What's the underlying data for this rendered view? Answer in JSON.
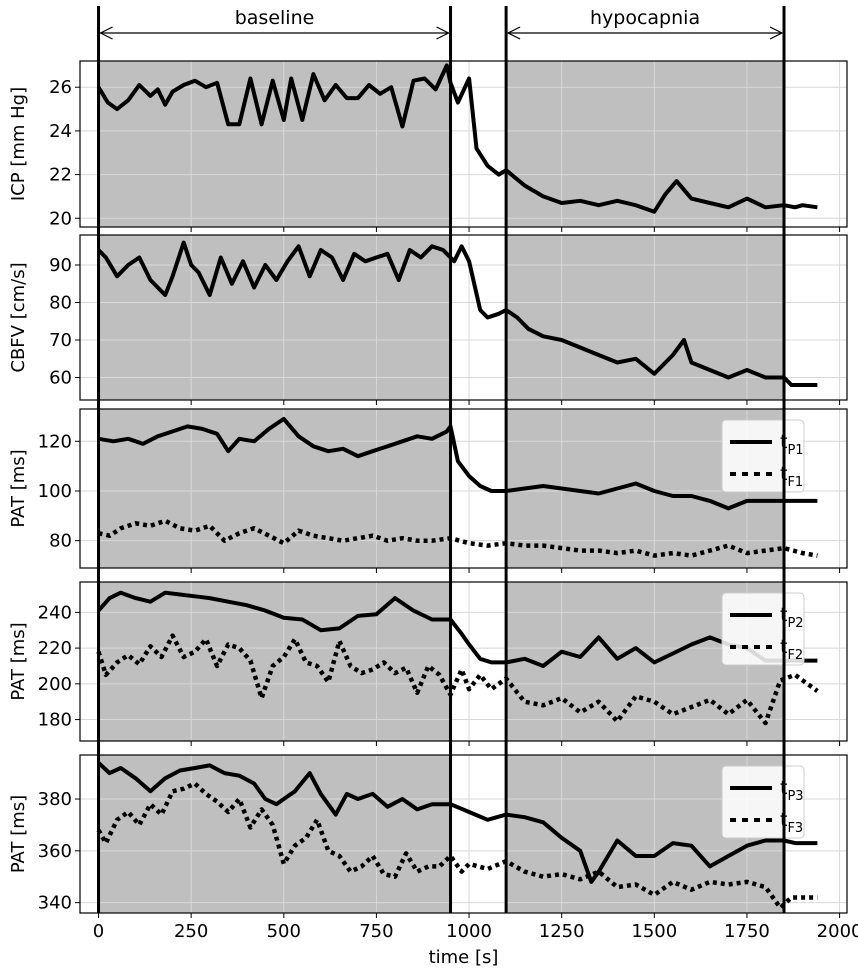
{
  "figure": {
    "phases": [
      {
        "label": "baseline",
        "start": 0,
        "end": 950
      },
      {
        "label": "hypocapnia",
        "start": 1100,
        "end": 1850
      }
    ]
  },
  "chart_data": [
    {
      "type": "line",
      "ylabel": "ICP [mm Hg]",
      "xlabel": "",
      "xlim": [
        -50,
        2020
      ],
      "ylim": [
        19.6,
        27.2
      ],
      "yticks": [
        20,
        22,
        24,
        26
      ],
      "xticks": [
        0,
        250,
        500,
        750,
        1000,
        1250,
        1500,
        1750,
        2000
      ],
      "grid": true,
      "series": [
        {
          "name": "",
          "style": "solid",
          "x": [
            0,
            25,
            50,
            80,
            110,
            140,
            160,
            180,
            200,
            230,
            260,
            290,
            320,
            350,
            380,
            410,
            440,
            470,
            500,
            520,
            550,
            580,
            610,
            640,
            670,
            700,
            730,
            760,
            790,
            820,
            850,
            880,
            910,
            940,
            950,
            970,
            1000,
            1020,
            1050,
            1080,
            1100,
            1150,
            1200,
            1250,
            1300,
            1350,
            1400,
            1450,
            1500,
            1530,
            1560,
            1600,
            1650,
            1700,
            1750,
            1800,
            1850,
            1880,
            1900,
            1940
          ],
          "y": [
            26,
            25.3,
            25.0,
            25.4,
            26.1,
            25.6,
            25.9,
            25.2,
            25.8,
            26.1,
            26.3,
            26.0,
            26.2,
            24.3,
            24.3,
            26.4,
            24.3,
            26.3,
            24.5,
            26.4,
            24.5,
            26.6,
            25.4,
            26.1,
            25.5,
            25.5,
            26.1,
            25.7,
            26.0,
            24.2,
            26.3,
            26.4,
            25.9,
            27.0,
            26.2,
            25.3,
            26.4,
            23.2,
            22.4,
            22.0,
            22.2,
            21.5,
            21.0,
            20.7,
            20.8,
            20.6,
            20.8,
            20.6,
            20.3,
            21.1,
            21.7,
            20.9,
            20.7,
            20.5,
            20.9,
            20.5,
            20.6,
            20.5,
            20.6,
            20.5
          ]
        }
      ]
    },
    {
      "type": "line",
      "ylabel": "CBFV [cm/s]",
      "xlabel": "",
      "xlim": [
        -50,
        2020
      ],
      "ylim": [
        54,
        98
      ],
      "yticks": [
        60,
        70,
        80,
        90
      ],
      "xticks": [
        0,
        250,
        500,
        750,
        1000,
        1250,
        1500,
        1750,
        2000
      ],
      "grid": true,
      "series": [
        {
          "name": "",
          "style": "solid",
          "x": [
            0,
            20,
            50,
            80,
            110,
            140,
            180,
            200,
            230,
            250,
            270,
            300,
            330,
            360,
            390,
            420,
            450,
            480,
            510,
            540,
            570,
            600,
            630,
            660,
            690,
            720,
            750,
            780,
            810,
            840,
            870,
            900,
            930,
            960,
            980,
            1000,
            1030,
            1050,
            1080,
            1100,
            1130,
            1160,
            1200,
            1250,
            1300,
            1350,
            1400,
            1450,
            1500,
            1550,
            1580,
            1600,
            1650,
            1700,
            1750,
            1800,
            1850,
            1870,
            1900,
            1940
          ],
          "y": [
            94,
            92,
            87,
            90,
            92,
            86,
            82,
            87,
            96,
            90,
            88,
            82,
            92,
            85,
            91,
            84,
            90,
            86,
            91,
            95,
            87,
            94,
            92,
            86,
            93,
            91,
            92,
            93,
            86,
            94,
            92,
            95,
            94,
            91,
            95,
            91,
            78,
            76,
            77,
            78,
            76,
            73,
            71,
            70,
            68,
            66,
            64,
            65,
            61,
            66,
            70,
            64,
            62,
            60,
            62,
            60,
            60,
            58,
            58,
            58
          ]
        }
      ]
    },
    {
      "type": "line",
      "ylabel": "PAT [ms]",
      "xlabel": "",
      "xlim": [
        -50,
        2020
      ],
      "ylim": [
        69,
        133
      ],
      "yticks": [
        80,
        100,
        120
      ],
      "xticks": [
        0,
        250,
        500,
        750,
        1000,
        1250,
        1500,
        1750,
        2000
      ],
      "grid": true,
      "legend": "right",
      "series": [
        {
          "name": "t",
          "name_sub": "P1",
          "style": "solid",
          "x": [
            0,
            40,
            80,
            120,
            160,
            200,
            240,
            280,
            320,
            350,
            380,
            420,
            460,
            500,
            540,
            580,
            620,
            660,
            700,
            740,
            780,
            820,
            860,
            900,
            940,
            950,
            970,
            1000,
            1030,
            1060,
            1100,
            1150,
            1200,
            1250,
            1300,
            1350,
            1400,
            1450,
            1500,
            1550,
            1600,
            1650,
            1700,
            1750,
            1800,
            1850,
            1900,
            1940
          ],
          "y": [
            121,
            120,
            121,
            119,
            122,
            124,
            126,
            125,
            123,
            116,
            121,
            120,
            125,
            129,
            122,
            118,
            116,
            117,
            114,
            116,
            118,
            120,
            122,
            121,
            124,
            126,
            112,
            106,
            102,
            100,
            100,
            101,
            102,
            101,
            100,
            99,
            101,
            103,
            100,
            98,
            98,
            96,
            93,
            96,
            96,
            96,
            96,
            96
          ]
        },
        {
          "name": "t",
          "name_sub": "F1",
          "style": "dotted",
          "x": [
            0,
            30,
            60,
            100,
            140,
            180,
            220,
            260,
            300,
            340,
            380,
            420,
            460,
            500,
            540,
            580,
            620,
            660,
            700,
            740,
            780,
            820,
            860,
            900,
            950,
            1000,
            1050,
            1100,
            1150,
            1200,
            1250,
            1300,
            1350,
            1400,
            1450,
            1500,
            1550,
            1600,
            1650,
            1700,
            1750,
            1800,
            1850,
            1900,
            1940
          ],
          "y": [
            83,
            82,
            85,
            87,
            86,
            88,
            85,
            84,
            86,
            80,
            83,
            85,
            82,
            79,
            84,
            82,
            81,
            80,
            81,
            82,
            80,
            81,
            80,
            80,
            81,
            79,
            78,
            79,
            78,
            78,
            77,
            76,
            76,
            75,
            76,
            74,
            75,
            74,
            76,
            78,
            75,
            76,
            77,
            75,
            74
          ]
        }
      ]
    },
    {
      "type": "line",
      "ylabel": "PAT [ms]",
      "xlabel": "",
      "xlim": [
        -50,
        2020
      ],
      "ylim": [
        168,
        257
      ],
      "yticks": [
        180,
        200,
        220,
        240
      ],
      "xticks": [
        0,
        250,
        500,
        750,
        1000,
        1250,
        1500,
        1750,
        2000
      ],
      "grid": true,
      "legend": "right",
      "series": [
        {
          "name": "t",
          "name_sub": "P2",
          "style": "solid",
          "x": [
            0,
            30,
            60,
            100,
            140,
            180,
            220,
            260,
            300,
            350,
            400,
            450,
            500,
            550,
            600,
            650,
            700,
            750,
            800,
            850,
            900,
            950,
            980,
            1000,
            1030,
            1060,
            1100,
            1150,
            1200,
            1250,
            1300,
            1350,
            1400,
            1450,
            1500,
            1550,
            1600,
            1650,
            1700,
            1750,
            1800,
            1850,
            1900,
            1940
          ],
          "y": [
            241,
            248,
            251,
            248,
            246,
            251,
            250,
            249,
            248,
            246,
            244,
            241,
            237,
            236,
            230,
            231,
            238,
            239,
            248,
            241,
            236,
            236,
            228,
            222,
            214,
            212,
            212,
            214,
            210,
            218,
            215,
            226,
            214,
            220,
            212,
            217,
            222,
            226,
            222,
            220,
            213,
            213,
            213,
            213
          ]
        },
        {
          "name": "t",
          "name_sub": "F2",
          "style": "dotted",
          "x": [
            0,
            20,
            50,
            80,
            110,
            140,
            170,
            200,
            230,
            260,
            290,
            320,
            350,
            380,
            410,
            440,
            470,
            500,
            530,
            560,
            590,
            620,
            650,
            680,
            710,
            740,
            770,
            800,
            830,
            860,
            890,
            920,
            950,
            980,
            1000,
            1030,
            1060,
            1100,
            1150,
            1200,
            1250,
            1300,
            1350,
            1400,
            1450,
            1500,
            1550,
            1600,
            1650,
            1700,
            1750,
            1800,
            1840,
            1880,
            1940
          ],
          "y": [
            218,
            205,
            212,
            216,
            211,
            221,
            215,
            227,
            215,
            218,
            225,
            210,
            222,
            220,
            213,
            192,
            210,
            215,
            225,
            212,
            210,
            201,
            224,
            210,
            206,
            208,
            212,
            206,
            209,
            195,
            210,
            205,
            194,
            208,
            197,
            205,
            197,
            203,
            190,
            188,
            192,
            184,
            190,
            179,
            193,
            190,
            183,
            187,
            191,
            183,
            191,
            178,
            202,
            205,
            196
          ]
        }
      ]
    },
    {
      "type": "line",
      "ylabel": "PAT [ms]",
      "xlabel": "time [s]",
      "xlim": [
        -50,
        2020
      ],
      "ylim": [
        336,
        397
      ],
      "yticks": [
        340,
        360,
        380
      ],
      "xticks": [
        0,
        250,
        500,
        750,
        1000,
        1250,
        1500,
        1750,
        2000
      ],
      "grid": true,
      "legend": "right",
      "series": [
        {
          "name": "t",
          "name_sub": "P3",
          "style": "solid",
          "x": [
            0,
            30,
            60,
            100,
            140,
            180,
            220,
            260,
            300,
            340,
            380,
            420,
            450,
            480,
            500,
            530,
            570,
            600,
            640,
            670,
            700,
            740,
            780,
            820,
            860,
            900,
            950,
            1000,
            1050,
            1100,
            1150,
            1200,
            1250,
            1300,
            1330,
            1350,
            1400,
            1450,
            1500,
            1550,
            1600,
            1650,
            1700,
            1750,
            1800,
            1850,
            1880,
            1900,
            1940
          ],
          "y": [
            394,
            390,
            392,
            388,
            383,
            388,
            391,
            392,
            393,
            390,
            389,
            386,
            380,
            378,
            380,
            383,
            390,
            382,
            374,
            382,
            380,
            382,
            377,
            380,
            376,
            378,
            378,
            375,
            372,
            374,
            373,
            371,
            365,
            360,
            348,
            352,
            364,
            358,
            358,
            363,
            362,
            354,
            358,
            362,
            364,
            364,
            363,
            363,
            363
          ]
        },
        {
          "name": "t",
          "name_sub": "F3",
          "style": "dotted",
          "x": [
            0,
            20,
            50,
            80,
            110,
            140,
            170,
            200,
            230,
            260,
            290,
            320,
            350,
            380,
            410,
            440,
            470,
            500,
            530,
            560,
            590,
            620,
            650,
            680,
            710,
            740,
            770,
            800,
            830,
            860,
            890,
            920,
            950,
            980,
            1000,
            1050,
            1100,
            1150,
            1200,
            1250,
            1300,
            1350,
            1400,
            1450,
            1500,
            1550,
            1600,
            1650,
            1700,
            1750,
            1800,
            1840,
            1870,
            1900,
            1940
          ],
          "y": [
            368,
            363,
            372,
            375,
            370,
            378,
            374,
            383,
            384,
            386,
            382,
            379,
            375,
            380,
            369,
            376,
            370,
            355,
            362,
            365,
            372,
            360,
            358,
            352,
            354,
            358,
            351,
            350,
            359,
            352,
            354,
            354,
            358,
            352,
            355,
            353,
            356,
            352,
            350,
            351,
            349,
            352,
            346,
            347,
            343,
            348,
            345,
            348,
            347,
            348,
            346,
            338,
            342,
            342,
            342
          ]
        }
      ]
    }
  ]
}
